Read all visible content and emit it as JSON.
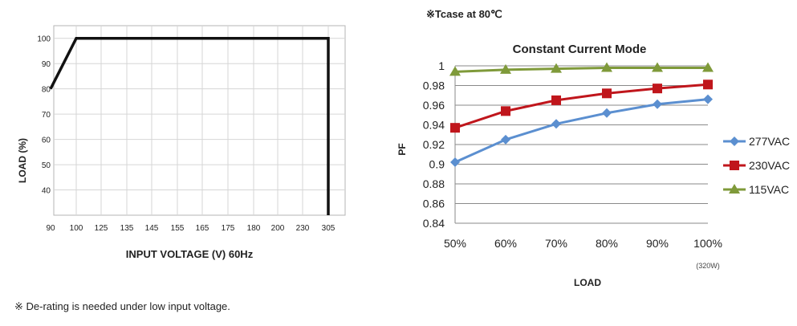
{
  "footnote": "※ De-rating is needed under low input voltage.",
  "chart_data": [
    {
      "type": "line",
      "title": "",
      "xlabel": "INPUT VOLTAGE (V) 60Hz",
      "ylabel": "LOAD (%)",
      "x_categories": [
        "90",
        "100",
        "125",
        "135",
        "145",
        "155",
        "165",
        "175",
        "180",
        "200",
        "230",
        "305"
      ],
      "y_ticks": [
        "40",
        "50",
        "60",
        "70",
        "80",
        "90",
        "100"
      ],
      "ylim": [
        30,
        105
      ],
      "series": [
        {
          "name": "Load",
          "color": "#111111",
          "points": [
            {
              "x": "90",
              "y": 80
            },
            {
              "x": "100",
              "y": 100
            },
            {
              "x": "305",
              "y": 100
            },
            {
              "x": "305",
              "y": 30
            }
          ]
        }
      ],
      "grid": true
    },
    {
      "type": "line",
      "note": "※Tcase at 80℃",
      "title": "Constant Current Mode",
      "xlabel": "LOAD",
      "ylabel": "PF",
      "categories": [
        "50%",
        "60%",
        "70%",
        "80%",
        "90%",
        "100%"
      ],
      "x_sublabel": "(320W)",
      "y_ticks": [
        "0.84",
        "0.86",
        "0.88",
        "0.9",
        "0.92",
        "0.94",
        "0.96",
        "0.98",
        "1"
      ],
      "ylim": [
        0.84,
        1
      ],
      "series": [
        {
          "name": "277VAC",
          "color": "#5b8fd0",
          "marker": "diamond",
          "values": [
            0.902,
            0.925,
            0.941,
            0.952,
            0.961,
            0.966
          ]
        },
        {
          "name": "230VAC",
          "color": "#c0161c",
          "marker": "square",
          "values": [
            0.937,
            0.954,
            0.965,
            0.972,
            0.977,
            0.981
          ]
        },
        {
          "name": "115VAC",
          "color": "#7f9a3a",
          "marker": "triangle",
          "values": [
            0.994,
            0.996,
            0.997,
            0.998,
            0.998,
            0.998
          ]
        }
      ],
      "legend": "right",
      "grid": true
    }
  ]
}
